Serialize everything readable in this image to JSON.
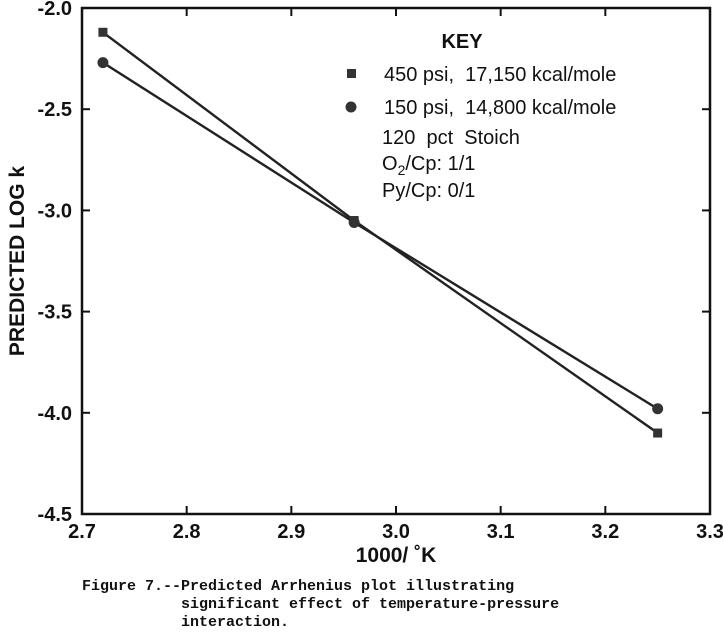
{
  "chart_data": {
    "type": "line",
    "title": "",
    "xlabel": "1000/ ˚K",
    "ylabel": "PREDICTED LOG k",
    "xlim": [
      2.7,
      3.3
    ],
    "ylim": [
      -4.5,
      -2.0
    ],
    "xticks": [
      2.7,
      2.8,
      2.9,
      3.0,
      3.1,
      3.2,
      3.3
    ],
    "xtick_labels": [
      "2.7",
      "2.8",
      "2.9",
      "3.0",
      "3.1",
      "3.2",
      "3.3"
    ],
    "yticks": [
      -2.0,
      -2.5,
      -3.0,
      -3.5,
      -4.0,
      -4.5
    ],
    "ytick_labels": [
      "-2.0",
      "-2.5",
      "-3.0",
      "-3.5",
      "-4.0",
      "-4.5"
    ],
    "grid": false,
    "legend_position": "top-right",
    "series": [
      {
        "name": "450 psi,  17,150 kcal/mole",
        "marker": "square",
        "x": [
          2.72,
          2.96,
          3.25
        ],
        "y": [
          -2.12,
          -3.05,
          -4.1
        ]
      },
      {
        "name": "150 psi,  14,800 kcal/mole",
        "marker": "circle",
        "x": [
          2.72,
          2.96,
          3.25
        ],
        "y": [
          -2.27,
          -3.06,
          -3.98
        ]
      }
    ],
    "key": {
      "title": "KEY",
      "conditions": {
        "stoich": "120  pct  Stoich",
        "o2_prefix": "O",
        "o2_sub": "2",
        "o2_suffix": "/Cp: 1/1",
        "py": "Py/Cp: 0/1"
      }
    }
  },
  "caption": {
    "line1": "Figure 7.--Predicted Arrhenius plot illustrating",
    "line2": "           significant effect of temperature-pressure",
    "line3": "           interaction."
  }
}
